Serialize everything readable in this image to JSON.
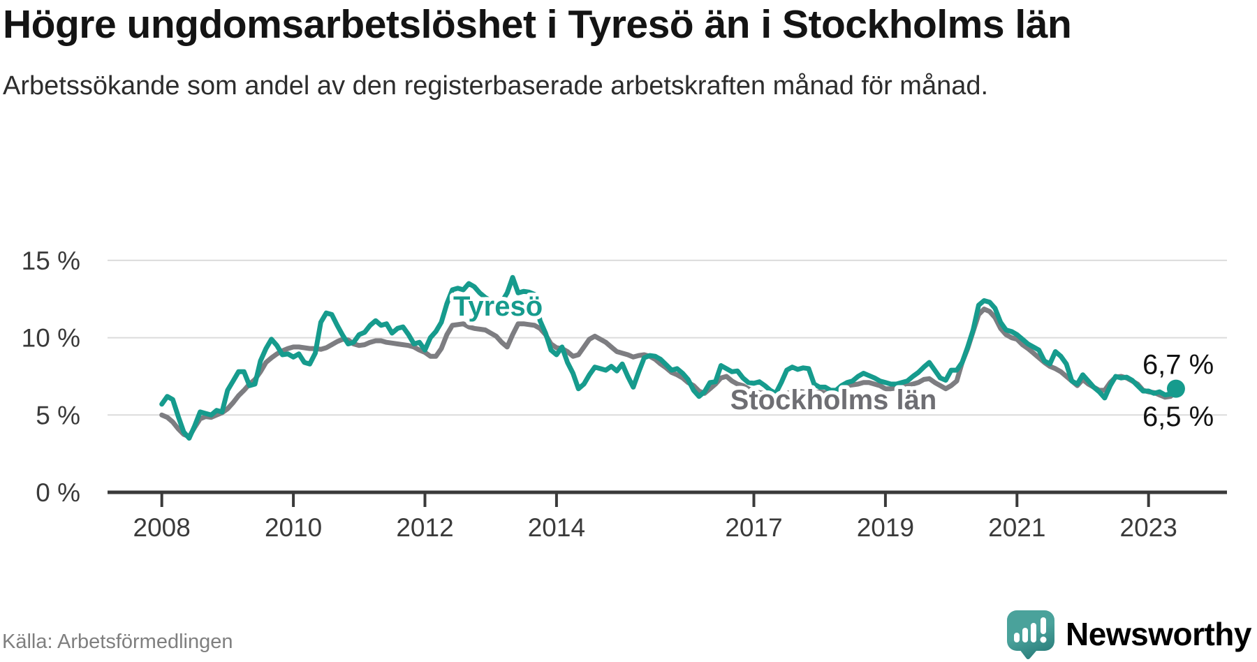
{
  "header": {
    "title": "Högre ungdomsarbetslöshet i Tyresö än i Stockholms län",
    "subtitle": "Arbetssökande som andel av den registerbaserade arbetskraften månad för månad."
  },
  "footer": {
    "source": "Källa: Arbetsförmedlingen",
    "brand_name": "Newsworthy"
  },
  "colors": {
    "tyreso": "#169B8D",
    "stockholm": "#7D7D81",
    "stockholm_label": "#6E6E73",
    "axis": "#3A3A3A",
    "grid": "#DBDBDB",
    "tick_text": "#3A3A3A",
    "end_label_text": "#111111",
    "brand_teal": "#4AA29B",
    "brand_teal_dark": "#2E827F"
  },
  "chart_data": {
    "type": "line",
    "frequency": "monthly",
    "x_start": {
      "year": 2008,
      "month": 1
    },
    "x_end": {
      "year": 2023,
      "month": 6
    },
    "x_ticks": [
      2008,
      2010,
      2012,
      2014,
      2017,
      2019,
      2021,
      2023
    ],
    "y_ticks": [
      {
        "value": 0,
        "label": "0 %"
      },
      {
        "value": 5,
        "label": "5 %"
      },
      {
        "value": 10,
        "label": "10 %"
      },
      {
        "value": 15,
        "label": "15 %"
      }
    ],
    "ylim": [
      0,
      15.9
    ],
    "grid": true,
    "legend_position": "inline-labels",
    "series": [
      {
        "name": "Stockholms län",
        "color_key": "stockholm",
        "label_color_key": "stockholm_label",
        "end_label": "6,5 %",
        "end_dot": false,
        "inline_label": {
          "text": "Stockholms län",
          "x_year": 2018.21,
          "y_pct": 6.0
        },
        "values": [
          5.0,
          4.85,
          4.55,
          4.1,
          3.75,
          3.6,
          4.2,
          4.75,
          4.9,
          4.85,
          5.0,
          5.15,
          5.4,
          5.8,
          6.25,
          6.6,
          7.0,
          7.3,
          7.8,
          8.4,
          8.7,
          8.95,
          9.15,
          9.3,
          9.4,
          9.4,
          9.35,
          9.3,
          9.3,
          9.25,
          9.35,
          9.55,
          9.75,
          9.9,
          9.85,
          9.6,
          9.5,
          9.55,
          9.7,
          9.8,
          9.8,
          9.7,
          9.65,
          9.6,
          9.55,
          9.5,
          9.4,
          9.2,
          9.05,
          8.8,
          8.8,
          9.3,
          10.2,
          10.8,
          10.85,
          10.9,
          10.7,
          10.6,
          10.55,
          10.5,
          10.3,
          10.1,
          9.7,
          9.4,
          10.2,
          10.9,
          10.9,
          10.85,
          10.8,
          10.6,
          10.2,
          9.6,
          9.35,
          9.3,
          9.1,
          8.8,
          8.9,
          9.4,
          9.9,
          10.1,
          9.9,
          9.7,
          9.4,
          9.1,
          9.0,
          8.9,
          8.75,
          8.85,
          8.9,
          8.8,
          8.6,
          8.3,
          8.05,
          7.75,
          7.6,
          7.4,
          7.1,
          6.9,
          6.55,
          6.4,
          6.7,
          7.0,
          7.4,
          7.5,
          7.2,
          7.0,
          6.9,
          6.7,
          6.55,
          6.45,
          6.4,
          6.3,
          6.3,
          6.35,
          6.4,
          6.5,
          6.55,
          6.5,
          6.45,
          6.4,
          6.5,
          6.45,
          6.4,
          6.5,
          6.7,
          6.9,
          6.95,
          7.0,
          7.1,
          7.1,
          7.0,
          6.9,
          6.7,
          6.7,
          6.75,
          6.8,
          6.9,
          7.0,
          7.1,
          7.3,
          7.35,
          7.1,
          6.9,
          6.7,
          6.9,
          7.2,
          8.4,
          9.3,
          10.4,
          11.5,
          11.85,
          11.7,
          11.3,
          10.6,
          10.2,
          10.0,
          9.9,
          9.55,
          9.3,
          9.0,
          8.7,
          8.4,
          8.15,
          8.0,
          7.8,
          7.5,
          7.2,
          6.9,
          7.3,
          7.0,
          6.8,
          6.6,
          6.6,
          7.1,
          7.45,
          7.5,
          7.4,
          7.2,
          7.0,
          6.6,
          6.5,
          6.45,
          6.3,
          6.15,
          6.2,
          6.5
        ]
      },
      {
        "name": "Tyresö",
        "color_key": "tyreso",
        "label_color_key": "tyreso",
        "end_label": "6,7 %",
        "end_dot": true,
        "inline_label": {
          "text": "Tyresö",
          "x_year": 2013.11,
          "y_pct": 12.05
        },
        "values": [
          5.7,
          6.2,
          6.0,
          4.9,
          3.9,
          3.5,
          4.3,
          5.2,
          5.1,
          5.0,
          5.3,
          5.2,
          6.6,
          7.2,
          7.8,
          7.8,
          6.9,
          7.0,
          8.5,
          9.3,
          9.9,
          9.5,
          8.9,
          8.95,
          8.75,
          8.95,
          8.4,
          8.3,
          9.0,
          11.0,
          11.6,
          11.5,
          10.8,
          10.15,
          9.6,
          9.7,
          10.2,
          10.35,
          10.8,
          11.1,
          10.8,
          10.9,
          10.3,
          10.6,
          10.7,
          10.2,
          9.6,
          9.7,
          9.2,
          10.0,
          10.4,
          11.0,
          12.2,
          13.1,
          13.2,
          13.1,
          13.5,
          13.3,
          12.9,
          12.6,
          12.4,
          12.0,
          12.3,
          12.9,
          13.9,
          12.9,
          13.0,
          12.95,
          12.8,
          11.1,
          10.3,
          9.2,
          8.9,
          9.4,
          8.4,
          7.7,
          6.7,
          7.0,
          7.6,
          8.1,
          8.0,
          7.9,
          8.15,
          7.85,
          8.3,
          7.5,
          6.8,
          7.8,
          8.7,
          8.85,
          8.8,
          8.6,
          8.25,
          7.9,
          8.0,
          7.7,
          7.3,
          6.6,
          6.2,
          6.5,
          7.1,
          7.15,
          8.2,
          8.0,
          7.8,
          7.85,
          7.4,
          7.1,
          7.05,
          7.15,
          6.9,
          6.6,
          6.4,
          7.1,
          7.9,
          8.1,
          7.95,
          8.05,
          8.0,
          7.0,
          6.8,
          6.8,
          6.6,
          6.6,
          6.9,
          7.1,
          7.2,
          7.5,
          7.7,
          7.55,
          7.4,
          7.2,
          7.1,
          7.0,
          7.0,
          7.1,
          7.2,
          7.5,
          7.75,
          8.1,
          8.4,
          7.9,
          7.4,
          7.25,
          7.9,
          7.9,
          8.4,
          9.4,
          10.5,
          12.1,
          12.4,
          12.3,
          11.9,
          11.0,
          10.5,
          10.4,
          10.2,
          9.9,
          9.6,
          9.4,
          9.2,
          8.5,
          8.3,
          9.1,
          8.8,
          8.3,
          7.2,
          7.0,
          7.6,
          7.2,
          6.8,
          6.5,
          6.1,
          6.9,
          7.5,
          7.4,
          7.45,
          7.25,
          6.9,
          6.55,
          6.55,
          6.4,
          6.5,
          6.3,
          6.35,
          6.7
        ]
      }
    ]
  }
}
